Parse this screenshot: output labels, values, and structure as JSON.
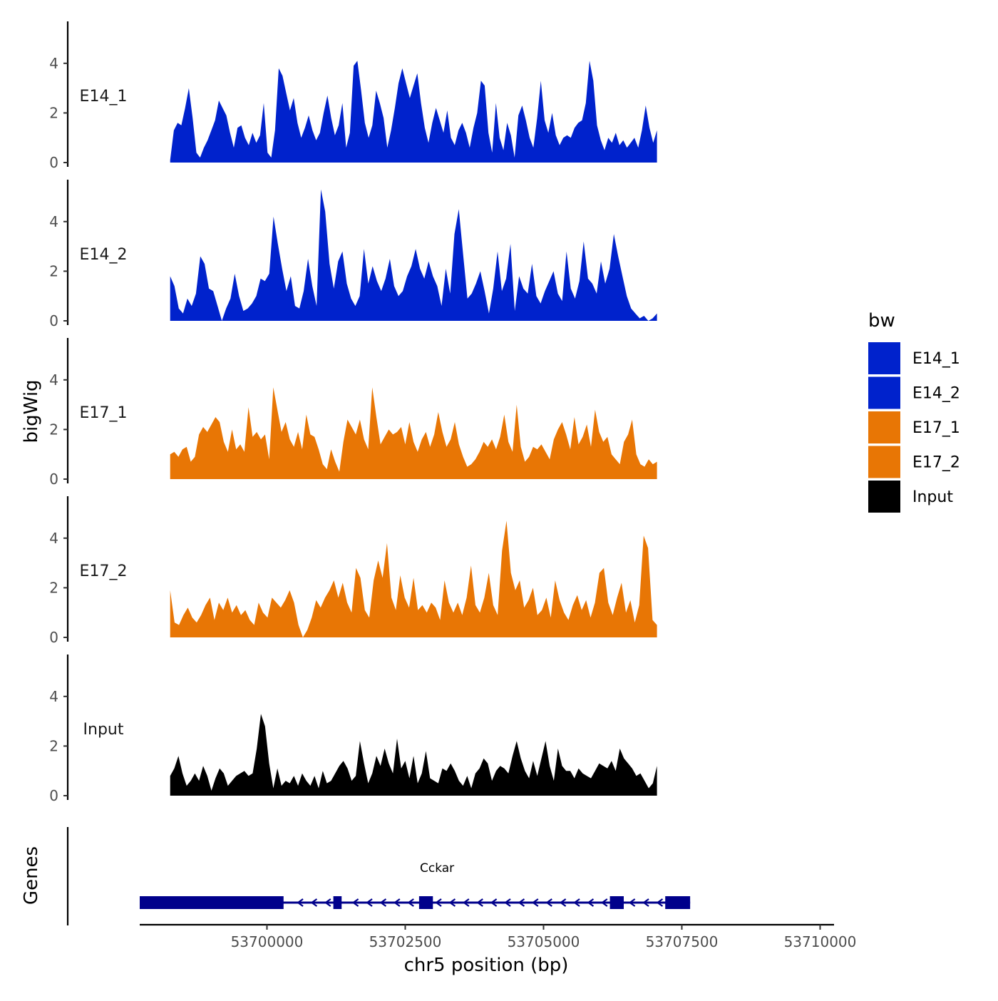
{
  "chart_data": {
    "type": "area",
    "ylabel": "bigWig",
    "xlabel": "chr5 position (bp)",
    "genes_label": "Genes",
    "xlim": [
      53697700,
      53710200
    ],
    "x_ticks": [
      {
        "value": 53700000,
        "label": "53700000"
      },
      {
        "value": 53702500,
        "label": "53702500"
      },
      {
        "value": 53705000,
        "label": "53705000"
      },
      {
        "value": 53707500,
        "label": "53707500"
      },
      {
        "value": 53710000,
        "label": "53710000"
      }
    ],
    "y_ticks": [
      {
        "value": 0,
        "label": "0"
      },
      {
        "value": 2,
        "label": "2"
      },
      {
        "value": 4,
        "label": "4"
      }
    ],
    "ylim": [
      0,
      5.6
    ],
    "bin_start": 53698250,
    "bin_size": 50,
    "legend": {
      "title": "bw",
      "entries": [
        {
          "label": "E14_1",
          "color": "#0022cc"
        },
        {
          "label": "E14_2",
          "color": "#0022cc"
        },
        {
          "label": "E17_1",
          "color": "#e87605"
        },
        {
          "label": "E17_2",
          "color": "#e87605"
        },
        {
          "label": "Input",
          "color": "#000000"
        }
      ]
    },
    "series": [
      {
        "name": "E14_1",
        "color": "#0022cc",
        "values": [
          0.1,
          1.3,
          1.6,
          1.5,
          2.2,
          3.0,
          1.8,
          0.4,
          0.2,
          0.6,
          0.9,
          1.3,
          1.7,
          2.5,
          2.2,
          1.9,
          1.2,
          0.6,
          1.4,
          1.5,
          1.0,
          0.7,
          1.2,
          0.8,
          1.1,
          2.4,
          0.4,
          0.2,
          1.3,
          3.8,
          3.5,
          2.8,
          2.1,
          2.6,
          1.6,
          1.0,
          1.4,
          1.9,
          1.3,
          0.9,
          1.2,
          2.0,
          2.7,
          1.8,
          1.1,
          1.5,
          2.4,
          0.6,
          1.2,
          3.9,
          4.1,
          2.9,
          1.6,
          1.0,
          1.5,
          2.9,
          2.4,
          1.8,
          0.6,
          1.3,
          2.2,
          3.2,
          3.8,
          3.2,
          2.6,
          3.1,
          3.6,
          2.4,
          1.4,
          0.8,
          1.6,
          2.2,
          1.7,
          1.2,
          2.1,
          1.0,
          0.7,
          1.3,
          1.6,
          1.2,
          0.6,
          1.4,
          2.0,
          3.3,
          3.1,
          1.2,
          0.4,
          2.4,
          1.0,
          0.5,
          1.6,
          1.1,
          0.2,
          1.9,
          2.3,
          1.7,
          1.0,
          0.6,
          1.8,
          3.3,
          1.7,
          1.2,
          2.0,
          1.1,
          0.7,
          1.0,
          1.1,
          1.0,
          1.4,
          1.6,
          1.7,
          2.4,
          4.1,
          3.3,
          1.5,
          0.9,
          0.5,
          1.0,
          0.8,
          1.2,
          0.7,
          0.9,
          0.6,
          0.8,
          1.0,
          0.6,
          1.3,
          2.3,
          1.4,
          0.8,
          1.3
        ]
      },
      {
        "name": "E14_2",
        "color": "#0022cc",
        "values": [
          1.8,
          1.4,
          0.5,
          0.3,
          0.9,
          0.6,
          1.1,
          2.6,
          2.3,
          1.3,
          1.2,
          0.6,
          0.0,
          0.5,
          0.9,
          1.9,
          1.0,
          0.4,
          0.5,
          0.7,
          1.0,
          1.7,
          1.6,
          1.9,
          4.2,
          3.1,
          2.1,
          1.2,
          1.8,
          0.6,
          0.5,
          1.2,
          2.5,
          1.4,
          0.6,
          5.3,
          4.4,
          2.3,
          1.3,
          2.4,
          2.8,
          1.5,
          0.9,
          0.6,
          1.0,
          2.9,
          1.5,
          2.2,
          1.6,
          1.2,
          1.7,
          2.5,
          1.4,
          1.0,
          1.2,
          1.8,
          2.2,
          2.9,
          2.1,
          1.7,
          2.4,
          1.8,
          1.4,
          0.6,
          2.1,
          1.1,
          3.5,
          4.5,
          2.7,
          0.9,
          1.1,
          1.5,
          2.0,
          1.2,
          0.3,
          1.3,
          2.8,
          1.2,
          1.7,
          3.1,
          0.4,
          1.8,
          1.3,
          1.1,
          2.3,
          1.0,
          0.7,
          1.2,
          1.6,
          2.0,
          1.1,
          0.8,
          2.8,
          1.3,
          0.9,
          1.6,
          3.2,
          1.7,
          1.5,
          1.1,
          2.4,
          1.5,
          2.1,
          3.5,
          2.6,
          1.8,
          1.0,
          0.5,
          0.3,
          0.1,
          0.2,
          0.0,
          0.1,
          0.3
        ]
      },
      {
        "name": "E17_1",
        "color": "#e87605",
        "values": [
          1.0,
          1.1,
          0.9,
          1.2,
          1.3,
          0.7,
          0.9,
          1.8,
          2.1,
          1.9,
          2.2,
          2.5,
          2.3,
          1.5,
          1.1,
          2.0,
          1.2,
          1.4,
          1.1,
          2.9,
          1.7,
          1.9,
          1.6,
          1.8,
          0.8,
          3.7,
          2.8,
          1.9,
          2.3,
          1.6,
          1.3,
          1.9,
          1.2,
          2.6,
          1.8,
          1.7,
          1.2,
          0.6,
          0.4,
          1.2,
          0.7,
          0.3,
          1.5,
          2.4,
          2.1,
          1.8,
          2.4,
          1.6,
          1.2,
          3.7,
          2.5,
          1.4,
          1.7,
          2.0,
          1.8,
          1.9,
          2.1,
          1.4,
          2.3,
          1.5,
          1.1,
          1.6,
          1.9,
          1.3,
          1.8,
          2.7,
          1.9,
          1.3,
          1.6,
          2.3,
          1.4,
          0.9,
          0.5,
          0.6,
          0.8,
          1.1,
          1.5,
          1.3,
          1.6,
          1.2,
          1.7,
          2.6,
          1.5,
          1.1,
          3.0,
          1.3,
          0.7,
          0.9,
          1.3,
          1.2,
          1.4,
          1.1,
          0.8,
          1.6,
          2.0,
          2.3,
          1.8,
          1.2,
          2.5,
          1.4,
          1.7,
          2.2,
          1.3,
          2.8,
          1.9,
          1.5,
          1.7,
          1.0,
          0.8,
          0.6,
          1.5,
          1.8,
          2.4,
          1.0,
          0.6,
          0.5,
          0.8,
          0.6,
          0.7
        ]
      },
      {
        "name": "E17_2",
        "color": "#e87605",
        "values": [
          1.9,
          0.6,
          0.5,
          0.9,
          1.2,
          0.8,
          0.6,
          0.9,
          1.3,
          1.6,
          0.7,
          1.4,
          1.1,
          1.6,
          1.0,
          1.3,
          0.9,
          1.1,
          0.7,
          0.5,
          1.4,
          1.0,
          0.8,
          1.6,
          1.4,
          1.2,
          1.5,
          1.9,
          1.4,
          0.5,
          0.0,
          0.3,
          0.8,
          1.5,
          1.2,
          1.6,
          1.9,
          2.3,
          1.6,
          2.2,
          1.4,
          1.0,
          2.8,
          2.4,
          1.1,
          0.8,
          2.3,
          3.1,
          2.4,
          3.8,
          1.6,
          1.1,
          2.5,
          1.6,
          1.2,
          2.4,
          1.1,
          1.3,
          1.0,
          1.4,
          1.2,
          0.7,
          2.3,
          1.4,
          1.0,
          1.4,
          0.9,
          1.6,
          2.9,
          1.3,
          1.0,
          1.6,
          2.6,
          1.3,
          0.9,
          3.5,
          4.7,
          2.6,
          1.9,
          2.3,
          1.2,
          1.5,
          2.0,
          0.9,
          1.1,
          1.6,
          0.8,
          2.3,
          1.5,
          1.0,
          0.7,
          1.3,
          1.7,
          1.1,
          1.5,
          0.8,
          1.4,
          2.6,
          2.8,
          1.4,
          0.9,
          1.6,
          2.2,
          1.0,
          1.5,
          0.6,
          1.3,
          4.1,
          3.6,
          0.7,
          0.5
        ]
      },
      {
        "name": "Input",
        "color": "#000000",
        "values": [
          0.8,
          1.1,
          1.6,
          0.9,
          0.4,
          0.6,
          0.9,
          0.6,
          1.2,
          0.8,
          0.2,
          0.7,
          1.1,
          0.9,
          0.4,
          0.6,
          0.8,
          0.9,
          1.0,
          0.8,
          0.9,
          1.9,
          3.3,
          2.8,
          1.3,
          0.3,
          1.1,
          0.4,
          0.6,
          0.5,
          0.8,
          0.4,
          0.9,
          0.6,
          0.4,
          0.8,
          0.3,
          1.0,
          0.5,
          0.6,
          0.9,
          1.2,
          1.4,
          1.1,
          0.6,
          0.8,
          2.2,
          1.3,
          0.5,
          0.9,
          1.6,
          1.2,
          1.9,
          1.3,
          0.9,
          2.3,
          1.1,
          1.4,
          0.7,
          1.6,
          0.5,
          0.9,
          1.8,
          0.7,
          0.6,
          0.5,
          1.1,
          1.0,
          1.3,
          1.0,
          0.6,
          0.4,
          0.8,
          0.3,
          0.9,
          1.1,
          1.5,
          1.3,
          0.6,
          1.0,
          1.2,
          1.1,
          0.9,
          1.6,
          2.2,
          1.5,
          1.0,
          0.7,
          1.4,
          0.8,
          1.5,
          2.2,
          1.2,
          0.6,
          1.9,
          1.2,
          1.0,
          1.0,
          0.7,
          1.1,
          0.9,
          0.8,
          0.7,
          1.0,
          1.3,
          1.2,
          1.1,
          1.4,
          1.0,
          1.9,
          1.5,
          1.3,
          1.1,
          0.8,
          0.9,
          0.6,
          0.3,
          0.5,
          1.2
        ]
      }
    ],
    "gene": {
      "name": "Cckar",
      "start": 53697700,
      "end": 53707650,
      "strand": "-",
      "color": "#00008b",
      "exons": [
        {
          "start": 53697700,
          "end": 53700300
        },
        {
          "start": 53701200,
          "end": 53701350
        },
        {
          "start": 53702750,
          "end": 53703000
        },
        {
          "start": 53706200,
          "end": 53706450
        },
        {
          "start": 53707200,
          "end": 53707650
        }
      ]
    }
  }
}
